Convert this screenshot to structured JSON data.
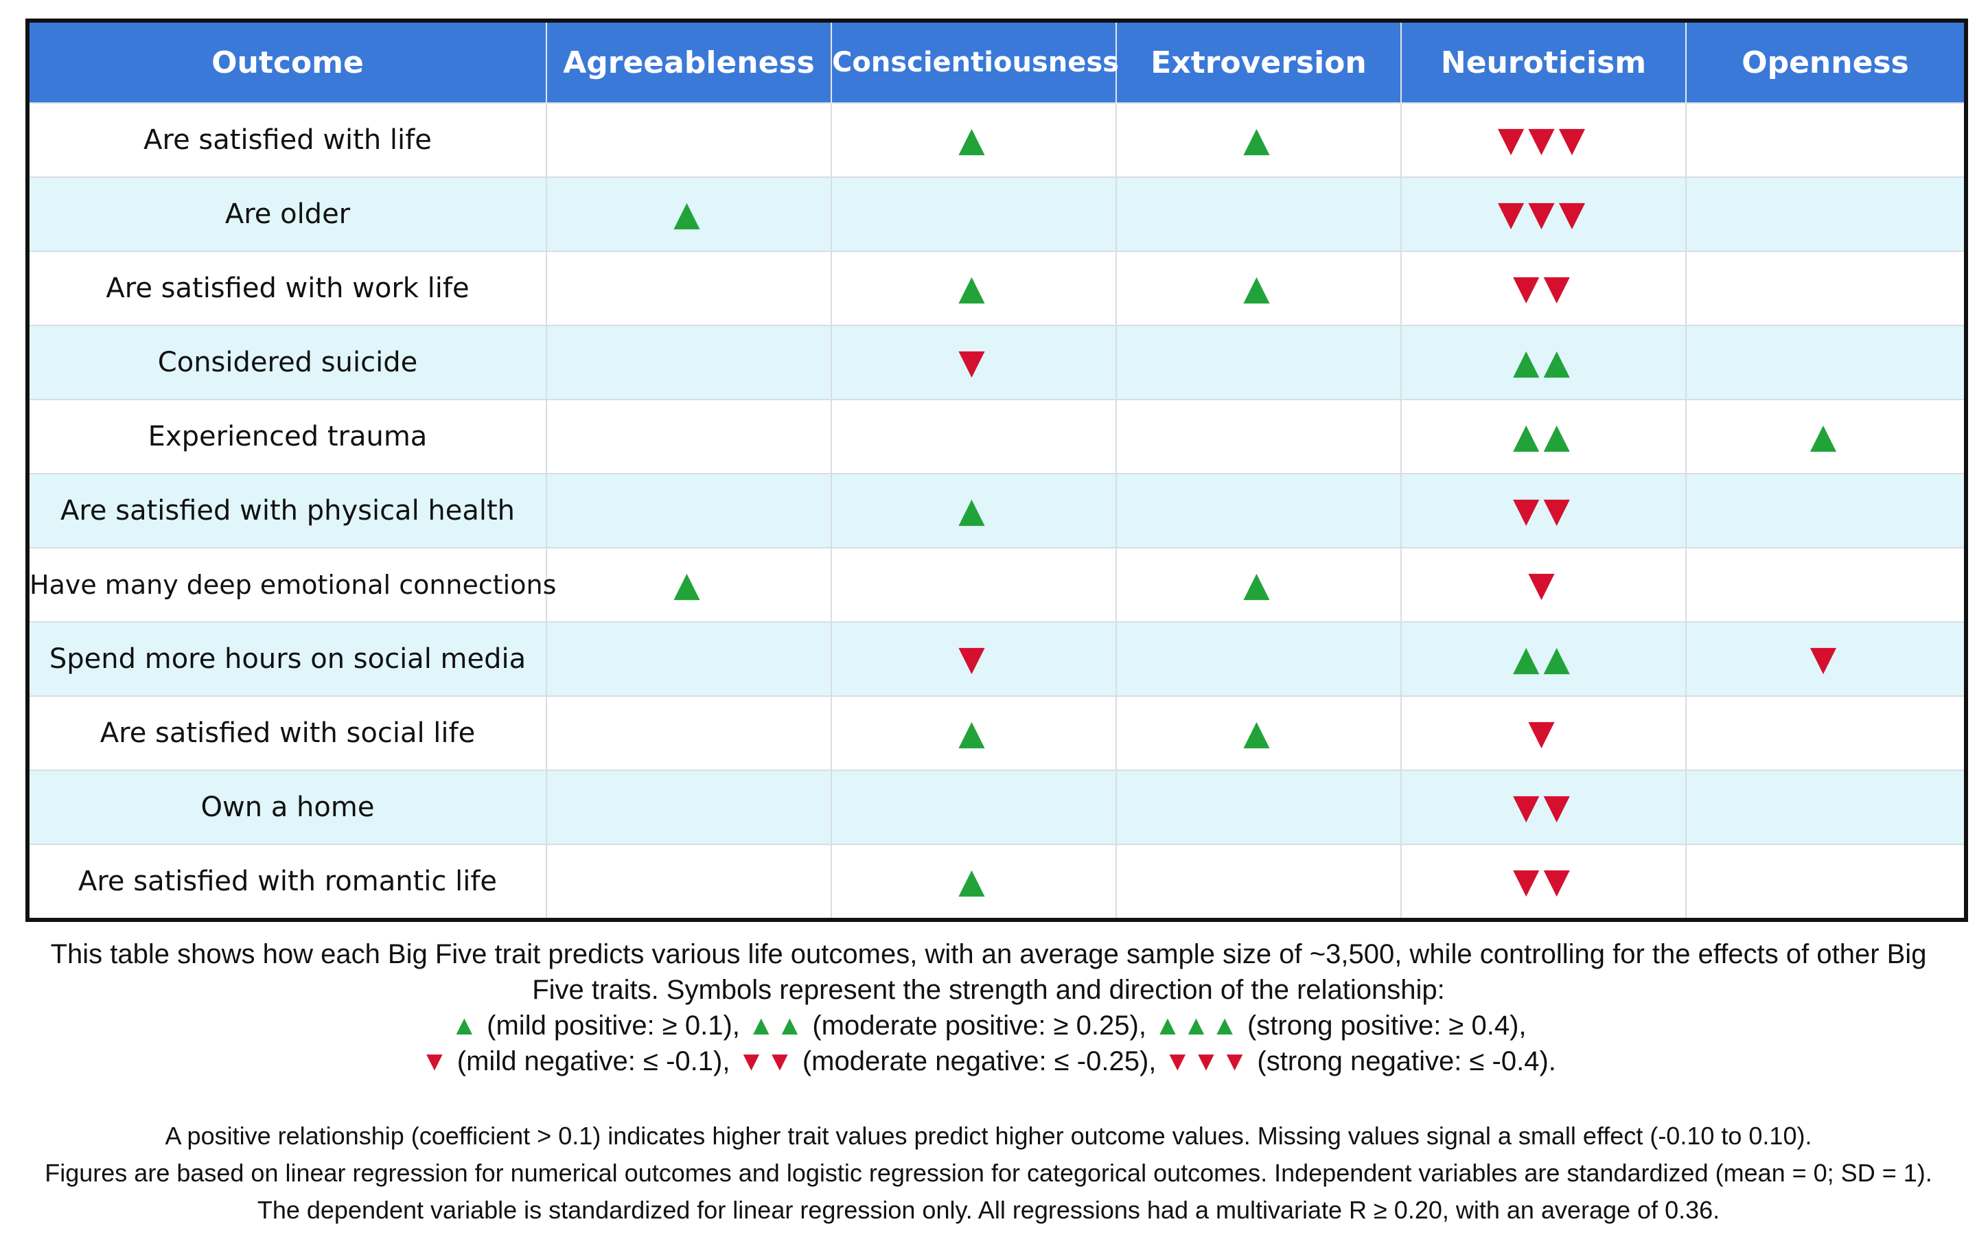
{
  "chart_data": {
    "type": "table",
    "columns": [
      "Outcome",
      "Agreeableness",
      "Conscientiousness",
      "Extroversion",
      "Neuroticism",
      "Openness"
    ],
    "rows": [
      {
        "outcome": "Are satisfied with life",
        "values": [
          0,
          1,
          1,
          -3,
          0
        ]
      },
      {
        "outcome": "Are older",
        "values": [
          1,
          0,
          0,
          -3,
          0
        ]
      },
      {
        "outcome": "Are satisfied with work life",
        "values": [
          0,
          1,
          1,
          -2,
          0
        ]
      },
      {
        "outcome": "Considered suicide",
        "values": [
          0,
          -1,
          0,
          2,
          0
        ]
      },
      {
        "outcome": "Experienced trauma",
        "values": [
          0,
          0,
          0,
          2,
          1
        ]
      },
      {
        "outcome": "Are satisfied with physical health",
        "values": [
          0,
          1,
          0,
          -2,
          0
        ]
      },
      {
        "outcome": "Have many deep emotional connections",
        "values": [
          1,
          0,
          1,
          -1,
          0
        ]
      },
      {
        "outcome": "Spend more hours on social media",
        "values": [
          0,
          -1,
          0,
          2,
          -1
        ]
      },
      {
        "outcome": "Are satisfied with social life",
        "values": [
          0,
          1,
          1,
          -1,
          0
        ]
      },
      {
        "outcome": "Own a home",
        "values": [
          0,
          0,
          0,
          -2,
          0
        ]
      },
      {
        "outcome": "Are satisfied with romantic life",
        "values": [
          0,
          1,
          0,
          -2,
          0
        ]
      }
    ],
    "symbols": {
      "positive": "▲",
      "negative": "▼"
    },
    "colors": {
      "header_bg": "#3b79d8",
      "alt_row_bg": "#e0f6fb",
      "positive": "#22a33a",
      "negative": "#d5102f"
    }
  },
  "caption": {
    "line1": "This table shows how each Big Five trait predicts various life outcomes, with an average sample size of ~3,500, while controlling for the effects of other Big",
    "line2": "Five traits. Symbols represent the strength and direction of the relationship:",
    "legend_positive": [
      {
        "symbols": "▲",
        "text": " (mild positive: ≥ 0.1), "
      },
      {
        "symbols": "▲▲",
        "text": " (moderate positive: ≥ 0.25), "
      },
      {
        "symbols": "▲▲▲",
        "text": " (strong positive: ≥ 0.4),"
      }
    ],
    "legend_negative": [
      {
        "symbols": "▼",
        "text": " (mild negative: ≤ -0.1), "
      },
      {
        "symbols": "▼▼",
        "text": " (moderate negative: ≤ -0.25), "
      },
      {
        "symbols": "▼▼▼",
        "text": " (strong negative: ≤ -0.4)."
      }
    ]
  },
  "notes": [
    "A positive relationship (coefficient > 0.1) indicates higher trait values predict higher outcome values. Missing values signal a small effect (-0.10 to 0.10).",
    "Figures are based on linear regression for numerical outcomes and logistic regression for categorical outcomes. Independent variables are standardized (mean = 0; SD = 1).",
    "The dependent variable is  standardized for linear regression only. All regressions had a multivariate R ≥ 0.20, with an average of 0.36."
  ]
}
